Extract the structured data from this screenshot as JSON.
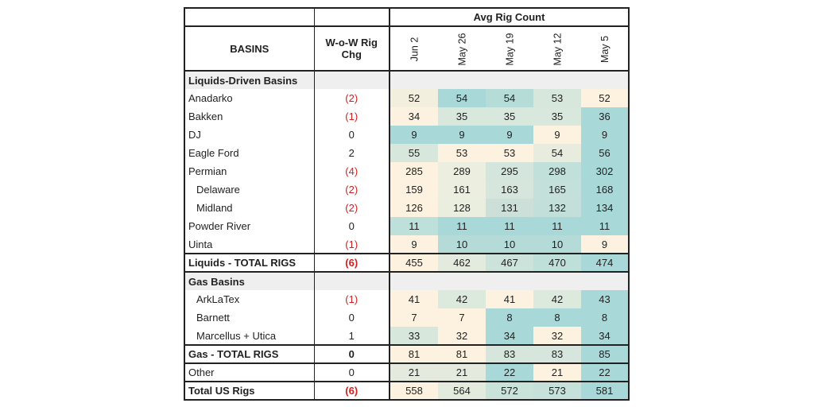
{
  "header": {
    "avg_label": "Avg Rig Count",
    "basins_label": "BASINS",
    "wow_label_line1": "W-o-W Rig",
    "wow_label_line2": "Chg",
    "dates": [
      "Jun 2",
      "May 26",
      "May 19",
      "May 12",
      "May 5"
    ]
  },
  "sections": {
    "liquids_title": "Liquids-Driven Basins",
    "gas_title": "Gas Basins"
  },
  "liquids_rows": [
    {
      "name": "Anadarko",
      "wow": "(2)",
      "values": [
        "52",
        "54",
        "54",
        "53",
        "52"
      ]
    },
    {
      "name": "Bakken",
      "wow": "(1)",
      "values": [
        "34",
        "35",
        "35",
        "35",
        "36"
      ]
    },
    {
      "name": "DJ",
      "wow": "0",
      "values": [
        "9",
        "9",
        "9",
        "9",
        "9"
      ]
    },
    {
      "name": "Eagle Ford",
      "wow": "2",
      "values": [
        "55",
        "53",
        "53",
        "54",
        "56"
      ]
    },
    {
      "name": "Permian",
      "wow": "(4)",
      "values": [
        "285",
        "289",
        "295",
        "298",
        "302"
      ]
    },
    {
      "name": "Delaware",
      "wow": "(2)",
      "values": [
        "159",
        "161",
        "163",
        "165",
        "168"
      ]
    },
    {
      "name": "Midland",
      "wow": "(2)",
      "values": [
        "126",
        "128",
        "131",
        "132",
        "134"
      ]
    },
    {
      "name": "Powder River",
      "wow": "0",
      "values": [
        "11",
        "11",
        "11",
        "11",
        "11"
      ]
    },
    {
      "name": "Uinta",
      "wow": "(1)",
      "values": [
        "9",
        "10",
        "10",
        "10",
        "9"
      ]
    }
  ],
  "liquids_total": {
    "name": "Liquids - TOTAL RIGS",
    "wow": "(6)",
    "values": [
      "455",
      "462",
      "467",
      "470",
      "474"
    ]
  },
  "gas_rows": [
    {
      "name": "ArkLaTex",
      "wow": "(1)",
      "values": [
        "41",
        "42",
        "41",
        "42",
        "43"
      ]
    },
    {
      "name": "Barnett",
      "wow": "0",
      "values": [
        "7",
        "7",
        "8",
        "8",
        "8"
      ]
    },
    {
      "name": "Marcellus + Utica",
      "wow": "1",
      "values": [
        "33",
        "32",
        "34",
        "32",
        "34"
      ]
    }
  ],
  "gas_total": {
    "name": "Gas - TOTAL RIGS",
    "wow": "0",
    "values": [
      "81",
      "81",
      "83",
      "83",
      "85"
    ]
  },
  "other": {
    "name": "Other",
    "wow": "0",
    "values": [
      "21",
      "21",
      "22",
      "21",
      "22"
    ]
  },
  "us_total": {
    "name": "Total US Rigs",
    "wow": "(6)",
    "values": [
      "558",
      "564",
      "572",
      "573",
      "581"
    ]
  },
  "colors": {
    "low": "#fdf3e0",
    "high": "#a9d8d8",
    "negative": "#d11f1f"
  },
  "cell_colors": {
    "liquids": [
      [
        "#f3efdf",
        "#a9d8d8",
        "#b6dcd8",
        "#d8e7dc",
        "#fdf1df"
      ],
      [
        "#fdf2df",
        "#d9e8dd",
        "#d9e8dd",
        "#d9e8dd",
        "#a9d8d8"
      ],
      [
        "#a9d8d8",
        "#a9d8d8",
        "#a9d8d8",
        "#fdf2df",
        "#a9d8d8"
      ],
      [
        "#d7e7dc",
        "#fdf2df",
        "#fdf2df",
        "#e7ecdf",
        "#a9d8d8"
      ],
      [
        "#fdf2df",
        "#ecefe0",
        "#d3e5dc",
        "#c1e0da",
        "#a9d8d8"
      ],
      [
        "#fdf2df",
        "#ecefe0",
        "#d6e6dc",
        "#c4e0da",
        "#a9d8d8"
      ],
      [
        "#fdf2df",
        "#eaeedf",
        "#ccdfd9",
        "#c2dfd9",
        "#a9d8d8"
      ],
      [
        "#bde0da",
        "#a9d8d8",
        "#a9d8d8",
        "#a9d8d8",
        "#a9d8d8"
      ],
      [
        "#fdf2df",
        "#b4dbd8",
        "#b4dbd8",
        "#b4dbd8",
        "#fdf2df"
      ]
    ],
    "liquids_total": [
      "#fdf2df",
      "#e2ebde",
      "#cce3db",
      "#bfdfd9",
      "#a9d8d8"
    ],
    "gas": [
      [
        "#fdf2df",
        "#dce9dd",
        "#fdf2df",
        "#dce9dd",
        "#a9d8d8"
      ],
      [
        "#fdf2df",
        "#fdf2df",
        "#a9d8d8",
        "#a9d8d8",
        "#a9d8d8"
      ],
      [
        "#d7e7dc",
        "#fdf2df",
        "#a9d8d8",
        "#fdf2df",
        "#a9d8d8"
      ]
    ],
    "gas_total": [
      "#fdf2df",
      "#fdf2df",
      "#d6e6dc",
      "#d6e6dc",
      "#a9d8d8"
    ],
    "other": [
      "#e4ebde",
      "#e4ebde",
      "#a9d8d8",
      "#fdf2df",
      "#a9d8d8"
    ],
    "us_total": [
      "#fdf2df",
      "#e2ebde",
      "#c9e2da",
      "#c6e1da",
      "#a9d8d8"
    ]
  }
}
